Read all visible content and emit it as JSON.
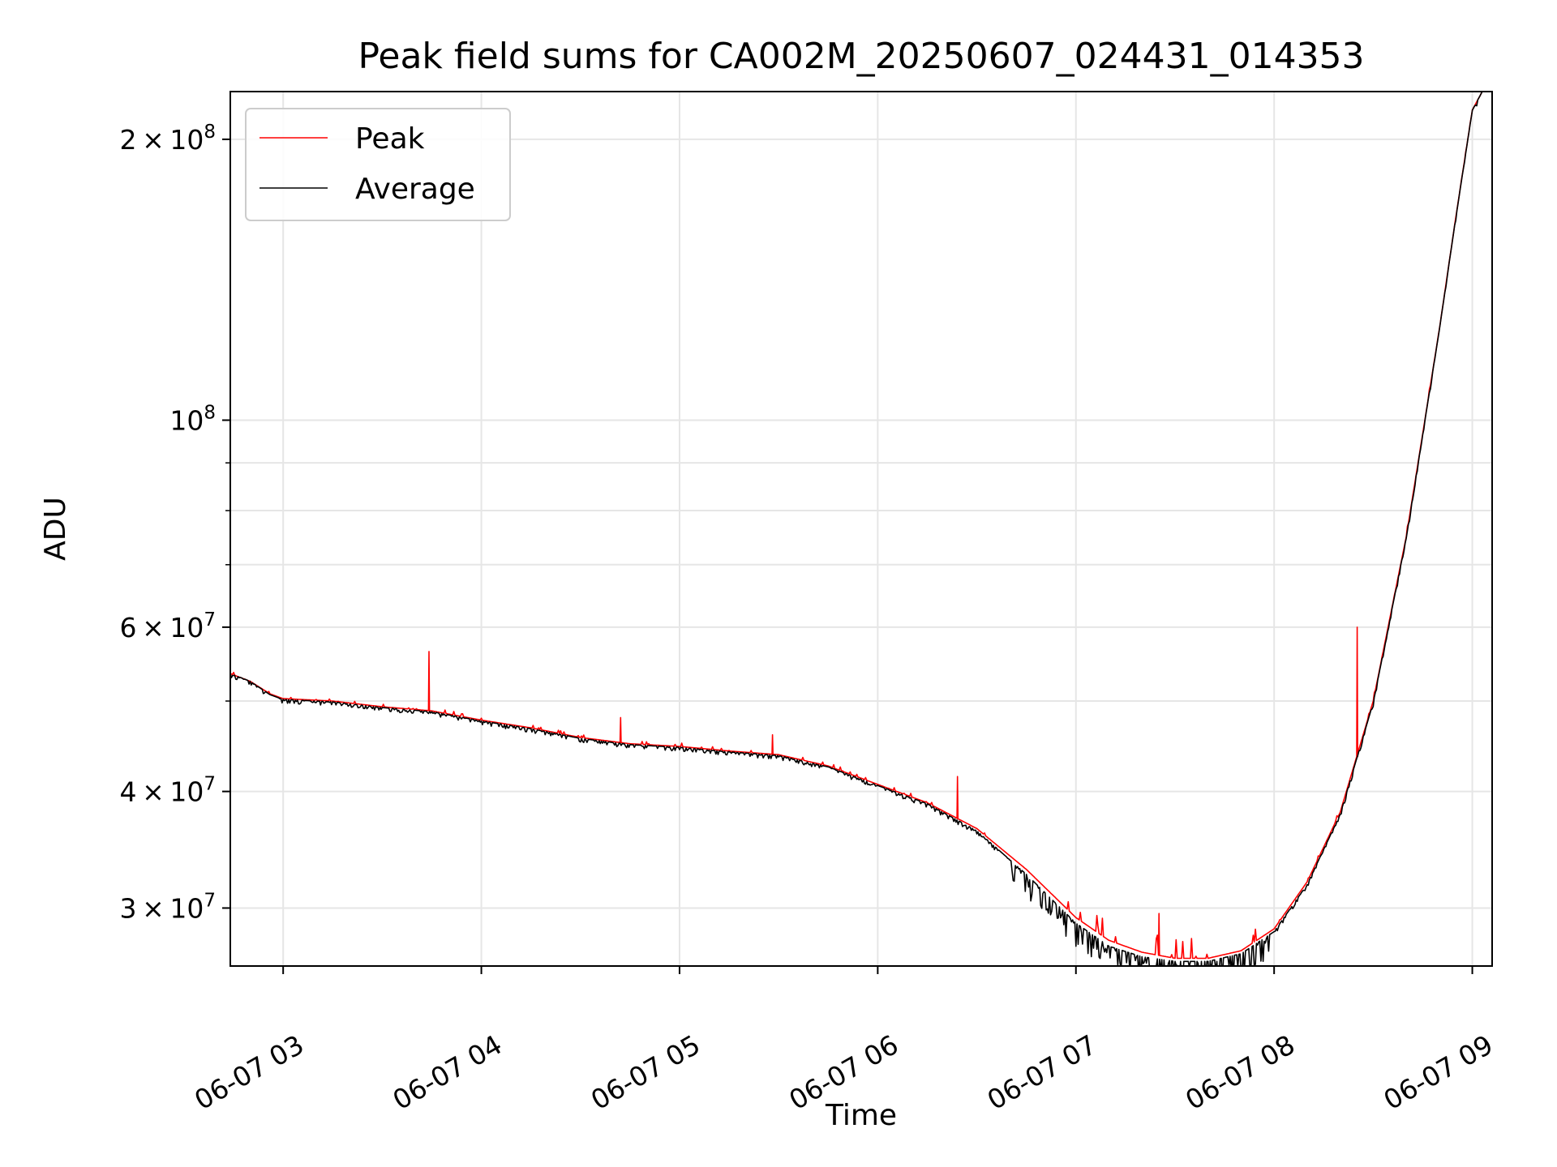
{
  "chart_data": {
    "type": "line",
    "title": "Peak field sums for CA002M_20250607_024431_014353",
    "xlabel": "Time",
    "ylabel": "ADU",
    "x_scale": "time",
    "y_scale": "log",
    "xlim": [
      "06-07 02:44",
      "06-07 09:06"
    ],
    "ylim": [
      26000000,
      225000000
    ],
    "x_ticks": [
      "06-07 03",
      "06-07 04",
      "06-07 05",
      "06-07 06",
      "06-07 07",
      "06-07 08",
      "06-07 09"
    ],
    "y_ticks": [
      {
        "value": 30000000,
        "base": "3",
        "exponent": "7"
      },
      {
        "value": 40000000,
        "base": "4",
        "exponent": "7"
      },
      {
        "value": 60000000,
        "base": "6",
        "exponent": "7"
      },
      {
        "value": 100000000,
        "base": "",
        "exponent": "8"
      },
      {
        "value": 200000000,
        "base": "2",
        "exponent": "8"
      }
    ],
    "y_tick_multiplier": "×",
    "y_tick_power_base": "10",
    "grid": true,
    "legend_position": "top-left",
    "series": [
      {
        "name": "Peak",
        "color": "#ff0000",
        "points": [
          [
            "06-07 02:44",
            53500000
          ],
          [
            "06-07 02:50",
            52500000
          ],
          [
            "06-07 02:56",
            50900000
          ],
          [
            "06-07 03:00",
            50300000
          ],
          [
            "06-07 03:15",
            50000000
          ],
          [
            "06-07 03:30",
            49300000
          ],
          [
            "06-07 03:45",
            48800000
          ],
          [
            "06-07 04:00",
            47700000
          ],
          [
            "06-07 04:15",
            46800000
          ],
          [
            "06-07 04:30",
            45700000
          ],
          [
            "06-07 04:45",
            45000000
          ],
          [
            "06-07 05:00",
            44700000
          ],
          [
            "06-07 05:15",
            44200000
          ],
          [
            "06-07 05:30",
            43800000
          ],
          [
            "06-07 05:45",
            42600000
          ],
          [
            "06-07 06:00",
            40700000
          ],
          [
            "06-07 06:15",
            38900000
          ],
          [
            "06-07 06:30",
            36500000
          ],
          [
            "06-07 06:45",
            33000000
          ],
          [
            "06-07 07:00",
            29300000
          ],
          [
            "06-07 07:10",
            27700000
          ],
          [
            "06-07 07:20",
            26900000
          ],
          [
            "06-07 07:30",
            26500000
          ],
          [
            "06-07 07:40",
            26500000
          ],
          [
            "06-07 07:50",
            27000000
          ],
          [
            "06-07 08:00",
            28500000
          ],
          [
            "06-07 08:10",
            32000000
          ],
          [
            "06-07 08:20",
            38000000
          ],
          [
            "06-07 08:30",
            50000000
          ],
          [
            "06-07 08:40",
            75000000
          ],
          [
            "06-07 08:50",
            125000000
          ],
          [
            "06-07 08:55",
            165000000
          ],
          [
            "06-07 09:00",
            215000000
          ],
          [
            "06-07 09:03",
            225000000
          ]
        ],
        "spikes": [
          [
            "06-07 03:44",
            56500000
          ],
          [
            "06-07 04:42",
            48000000
          ],
          [
            "06-07 05:28",
            46000000
          ],
          [
            "06-07 06:24",
            41500000
          ],
          [
            "06-07 07:25",
            29600000
          ],
          [
            "06-07 08:25",
            60000000
          ]
        ]
      },
      {
        "name": "Average",
        "color": "#000000",
        "points": [
          [
            "06-07 02:44",
            53500000
          ],
          [
            "06-07 02:50",
            52500000
          ],
          [
            "06-07 02:56",
            50800000
          ],
          [
            "06-07 03:00",
            50200000
          ],
          [
            "06-07 03:15",
            49900000
          ],
          [
            "06-07 03:30",
            49200000
          ],
          [
            "06-07 03:45",
            48700000
          ],
          [
            "06-07 04:00",
            47600000
          ],
          [
            "06-07 04:15",
            46700000
          ],
          [
            "06-07 04:30",
            45600000
          ],
          [
            "06-07 04:45",
            44900000
          ],
          [
            "06-07 05:00",
            44600000
          ],
          [
            "06-07 05:15",
            44100000
          ],
          [
            "06-07 05:30",
            43700000
          ],
          [
            "06-07 05:45",
            42500000
          ],
          [
            "06-07 06:00",
            40600000
          ],
          [
            "06-07 06:15",
            38800000
          ],
          [
            "06-07 06:30",
            36300000
          ],
          [
            "06-07 06:45",
            32600000
          ],
          [
            "06-07 07:00",
            28900000
          ],
          [
            "06-07 07:10",
            27300000
          ],
          [
            "06-07 07:20",
            26600000
          ],
          [
            "06-07 07:30",
            26300000
          ],
          [
            "06-07 07:40",
            26300000
          ],
          [
            "06-07 07:50",
            26800000
          ],
          [
            "06-07 08:00",
            28300000
          ],
          [
            "06-07 08:10",
            31800000
          ],
          [
            "06-07 08:20",
            37800000
          ],
          [
            "06-07 08:30",
            49800000
          ],
          [
            "06-07 08:40",
            74800000
          ],
          [
            "06-07 08:50",
            124800000
          ],
          [
            "06-07 08:55",
            164800000
          ],
          [
            "06-07 09:00",
            214800000
          ],
          [
            "06-07 09:03",
            225000000
          ]
        ]
      }
    ]
  }
}
